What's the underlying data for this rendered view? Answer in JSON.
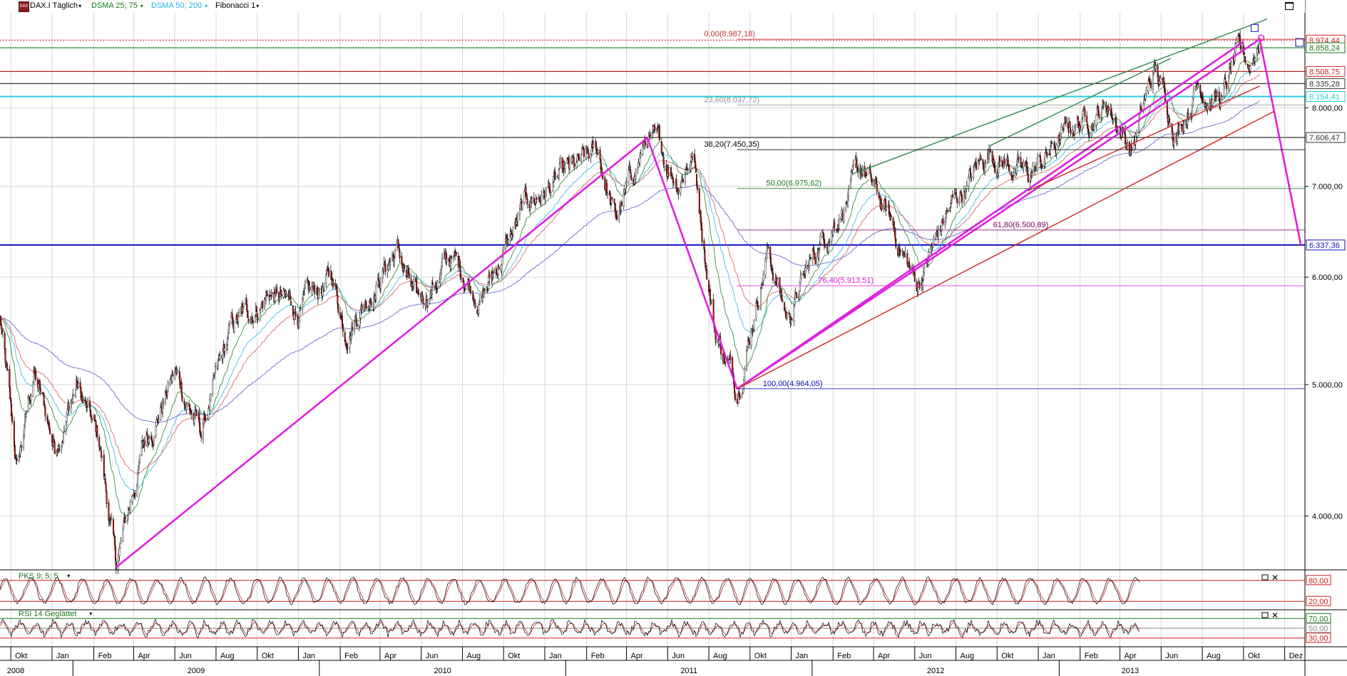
{
  "toolbar": {
    "symbol": "DAX.I Täglich",
    "dsma1": "DSMA 25; 75",
    "dsma2": "DSMA 50; 200",
    "fibonacci": "Fibonacci 1",
    "colors": {
      "dsma1": "#1a7a1a",
      "dsma2": "#22b0e0",
      "symbol_icon": "#8a1f1f"
    },
    "icons": [
      "symbol-icon",
      "dropdown-arrow-icon",
      "maximize-icon"
    ]
  },
  "chart_data": [
    {
      "type": "candlestick",
      "title": "DAX.I Täglich",
      "scale": "log",
      "ylim": [
        3650,
        9400
      ],
      "xlim": [
        "2008-09-15",
        "2013-12-31"
      ],
      "grid": true,
      "y_ticks": [
        {
          "value": 4000,
          "label": "4.000,00"
        },
        {
          "value": 5000,
          "label": "5.000,00"
        },
        {
          "value": 6000,
          "label": "6.000,00"
        },
        {
          "value": 7000,
          "label": "7.000,00"
        },
        {
          "value": 8000,
          "label": "8.000,00"
        }
      ],
      "x_month_ticks": [
        "Okt",
        "Jan",
        "Feb",
        "Apr",
        "Jun",
        "Aug",
        "Okt",
        "Jan",
        "Feb",
        "Apr",
        "Jun",
        "Aug",
        "Okt",
        "Jan",
        "Feb",
        "Apr",
        "Jun",
        "Aug",
        "Okt",
        "Jan",
        "Feb",
        "Apr",
        "Jun",
        "Aug",
        "Okt",
        "Jan",
        "Feb",
        "Apr",
        "Jun",
        "Aug",
        "Okt"
      ],
      "x_year_labels": [
        "2008",
        "2009",
        "2010",
        "2011",
        "2012",
        "2013"
      ],
      "price_path": [
        {
          "date": "2008-09-15",
          "close": 5600
        },
        {
          "date": "2008-10-10",
          "close": 4300
        },
        {
          "date": "2008-11-04",
          "close": 5100
        },
        {
          "date": "2008-12-05",
          "close": 4500
        },
        {
          "date": "2009-01-06",
          "close": 5000
        },
        {
          "date": "2009-02-10",
          "close": 4500
        },
        {
          "date": "2009-03-06",
          "close": 3666
        },
        {
          "date": "2009-04-15",
          "close": 4500
        },
        {
          "date": "2009-06-01",
          "close": 5100
        },
        {
          "date": "2009-07-10",
          "close": 4600
        },
        {
          "date": "2009-08-25",
          "close": 5500
        },
        {
          "date": "2009-10-20",
          "close": 5850
        },
        {
          "date": "2009-11-30",
          "close": 5650
        },
        {
          "date": "2010-01-20",
          "close": 6000
        },
        {
          "date": "2010-02-08",
          "close": 5500
        },
        {
          "date": "2010-04-26",
          "close": 6300
        },
        {
          "date": "2010-05-25",
          "close": 5700
        },
        {
          "date": "2010-07-15",
          "close": 6200
        },
        {
          "date": "2010-08-30",
          "close": 5800
        },
        {
          "date": "2010-11-05",
          "close": 6800
        },
        {
          "date": "2011-01-18",
          "close": 7200
        },
        {
          "date": "2011-02-18",
          "close": 7400
        },
        {
          "date": "2011-03-16",
          "close": 6600
        },
        {
          "date": "2011-05-02",
          "close": 7600
        },
        {
          "date": "2011-06-17",
          "close": 7100
        },
        {
          "date": "2011-07-08",
          "close": 7450
        },
        {
          "date": "2011-08-10",
          "close": 5500
        },
        {
          "date": "2011-09-12",
          "close": 4964
        },
        {
          "date": "2011-10-27",
          "close": 6300
        },
        {
          "date": "2011-11-25",
          "close": 5600
        },
        {
          "date": "2012-01-15",
          "close": 6400
        },
        {
          "date": "2012-03-16",
          "close": 7190
        },
        {
          "date": "2012-04-25",
          "close": 6600
        },
        {
          "date": "2012-06-04",
          "close": 5915
        },
        {
          "date": "2012-07-20",
          "close": 6700
        },
        {
          "date": "2012-09-20",
          "close": 7450
        },
        {
          "date": "2012-11-16",
          "close": 7100
        },
        {
          "date": "2013-01-25",
          "close": 7800
        },
        {
          "date": "2013-03-15",
          "close": 8050
        },
        {
          "date": "2013-04-18",
          "close": 7450
        },
        {
          "date": "2013-05-22",
          "close": 8530
        },
        {
          "date": "2013-06-24",
          "close": 7700
        },
        {
          "date": "2013-07-25",
          "close": 8350
        },
        {
          "date": "2013-08-30",
          "close": 8100
        },
        {
          "date": "2013-09-20",
          "close": 8700
        },
        {
          "date": "2013-10-10",
          "close": 8600
        },
        {
          "date": "2013-10-25",
          "close": 8987
        }
      ],
      "horizontal_levels": [
        {
          "value": 8974.44,
          "label": "8.974,44",
          "color": "#d02020",
          "style": "dotted"
        },
        {
          "value": 8858.24,
          "label": "8.858,24",
          "color": "#1a7a1a"
        },
        {
          "value": 8508.75,
          "label": "8.508,75",
          "color": "#d02020"
        },
        {
          "value": 8335.28,
          "label": "8.335,28",
          "color": "#333333"
        },
        {
          "value": 8154.41,
          "label": "8.154,41",
          "color": "#22d0e0"
        },
        {
          "value": 7606.47,
          "label": "7.606,47",
          "color": "#333333"
        },
        {
          "value": 6337.36,
          "label": "6.337,36",
          "color": "#1010c0"
        }
      ],
      "fibonacci": [
        {
          "label": "0,00(8.987,18)",
          "value": 8987.18,
          "color": "#d03030"
        },
        {
          "label": "23,60(8.037,72)",
          "value": 8037.72,
          "color": "#909090"
        },
        {
          "label": "38,20(7.450,35)",
          "value": 7450.35,
          "color": "#000000"
        },
        {
          "label": "50,00(6.975,62)",
          "value": 6975.62,
          "color": "#1a7a1a"
        },
        {
          "label": "61,80(6.500,89)",
          "value": 6500.89,
          "color": "#800060"
        },
        {
          "label": "76,40(5.913,51)",
          "value": 5913.51,
          "color": "#e020e0"
        },
        {
          "label": "100,00(4.964,05)",
          "value": 4964.05,
          "color": "#1010c0"
        }
      ],
      "trendlines": [
        {
          "color": "#e020e0",
          "points": [
            {
              "date": "2009-03-06",
              "value": 3666
            },
            {
              "date": "2011-05-02",
              "value": 7600
            },
            {
              "date": "2011-09-12",
              "value": 4964
            },
            {
              "date": "2013-10-25",
              "value": 8987
            },
            {
              "date": "2013-12-25",
              "value": 6337
            }
          ]
        },
        {
          "color": "#e020e0",
          "points": [
            {
              "date": "2011-09-12",
              "value": 4964
            },
            {
              "date": "2013-10-01",
              "value": 8950
            }
          ]
        },
        {
          "color": "#d02020",
          "points": [
            {
              "date": "2011-09-12",
              "value": 4964
            },
            {
              "date": "2013-11-15",
              "value": 7950
            }
          ]
        },
        {
          "color": "#d02020",
          "points": [
            {
              "date": "2012-11-16",
              "value": 6950
            },
            {
              "date": "2013-10-25",
              "value": 8300
            }
          ]
        },
        {
          "color": "#2a8a4a",
          "points": [
            {
              "date": "2012-03-01",
              "value": 7150
            },
            {
              "date": "2013-11-05",
              "value": 9300
            }
          ]
        },
        {
          "color": "#2a8a4a",
          "points": [
            {
              "date": "2012-09-20",
              "value": 7500
            },
            {
              "date": "2013-06-15",
              "value": 8700
            }
          ]
        }
      ]
    },
    {
      "type": "line",
      "title": "PKS 9; 5; 5",
      "ylim": [
        0,
        100
      ],
      "reference_lines": [
        {
          "value": 80,
          "label": "80,00"
        },
        {
          "value": 20,
          "label": "20,00"
        }
      ],
      "series": []
    },
    {
      "type": "line",
      "title": "RSI 14 Geglättet",
      "ylim": [
        15,
        85
      ],
      "reference_lines": [
        {
          "value": 70,
          "label": "70,00"
        },
        {
          "value": 50,
          "label": "50,00"
        },
        {
          "value": 30,
          "label": "30,00"
        }
      ],
      "series": []
    }
  ]
}
